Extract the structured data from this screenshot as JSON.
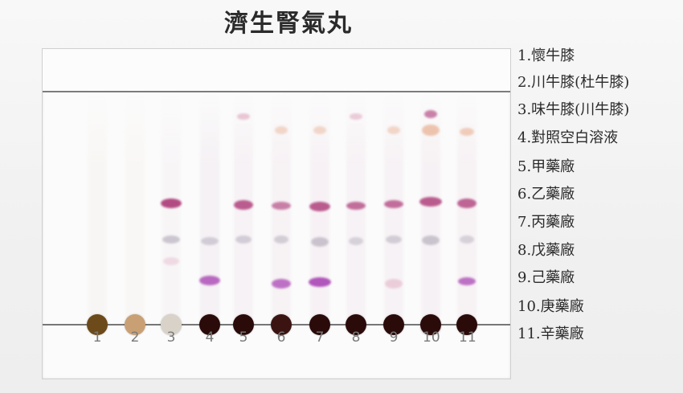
{
  "title": "濟生腎氣丸",
  "legend": [
    "1.懷牛膝",
    "2.川牛膝(杜牛膝)",
    "3.味牛膝(川牛膝)",
    "4.對照空白溶液",
    "5.甲藥廠",
    "6.乙藥廠",
    "7.丙藥廠",
    "8.戊藥廠",
    "9.己藥廠",
    "10.庚藥廠",
    "11.辛藥廠"
  ],
  "lane_numbers": [
    "1",
    "2",
    "3",
    "4",
    "5",
    "6",
    "7",
    "8",
    "9",
    "10",
    "11"
  ],
  "colors": {
    "origin_dark": "#2a0b0a",
    "origin_brown": "#6d4a1a",
    "origin_tan": "#c9a074",
    "origin_light": "#d9d2c8",
    "spot_magenta": "#b0427d",
    "spot_pink": "#d58aa9",
    "spot_violet": "#a53bb1",
    "spot_gray": "#a69fb0",
    "spot_orange": "#e49b72"
  }
}
